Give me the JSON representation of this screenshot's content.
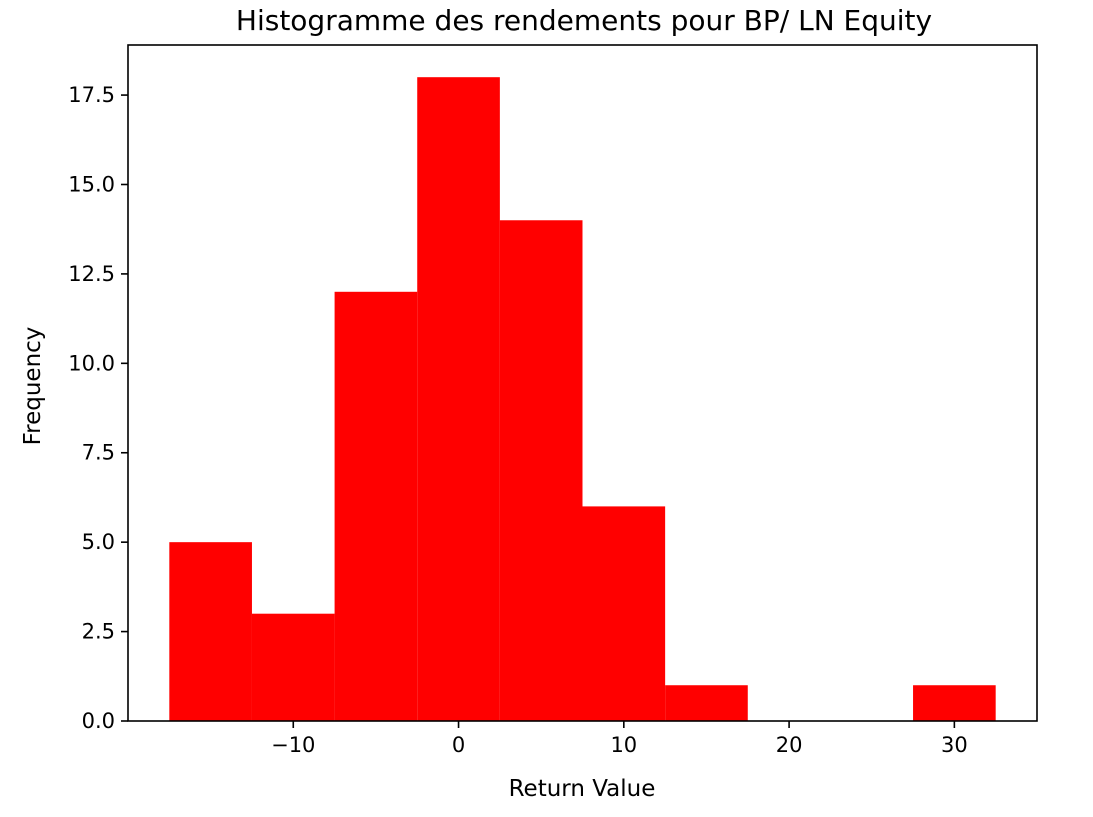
{
  "chart_data": {
    "type": "bar",
    "title": "Histogramme des rendements pour BP/ LN Equity",
    "xlabel": "Return Value",
    "ylabel": "Frequency",
    "bins": [
      {
        "start": -17.5,
        "end": -12.5,
        "count": 5
      },
      {
        "start": -12.5,
        "end": -7.5,
        "count": 3
      },
      {
        "start": -7.5,
        "end": -2.5,
        "count": 12
      },
      {
        "start": -2.5,
        "end": 2.5,
        "count": 18
      },
      {
        "start": 2.5,
        "end": 7.5,
        "count": 14
      },
      {
        "start": 7.5,
        "end": 12.5,
        "count": 6
      },
      {
        "start": 12.5,
        "end": 17.5,
        "count": 1
      },
      {
        "start": 17.5,
        "end": 22.5,
        "count": 0
      },
      {
        "start": 22.5,
        "end": 27.5,
        "count": 0
      },
      {
        "start": 27.5,
        "end": 32.5,
        "count": 1
      }
    ],
    "xlim": [
      -20.0,
      35.0
    ],
    "ylim": [
      0,
      18.9
    ],
    "xticks": [
      -10,
      0,
      10,
      20,
      30
    ],
    "xtick_labels": [
      "−10",
      "0",
      "10",
      "20",
      "30"
    ],
    "yticks": [
      0,
      2.5,
      5,
      7.5,
      10,
      12.5,
      15,
      17.5
    ],
    "ytick_labels": [
      "0.0",
      "2.5",
      "5.0",
      "7.5",
      "10.0",
      "12.5",
      "15.0",
      "17.5"
    ],
    "bar_color": "#ff0000",
    "grid": false,
    "legend": false
  }
}
